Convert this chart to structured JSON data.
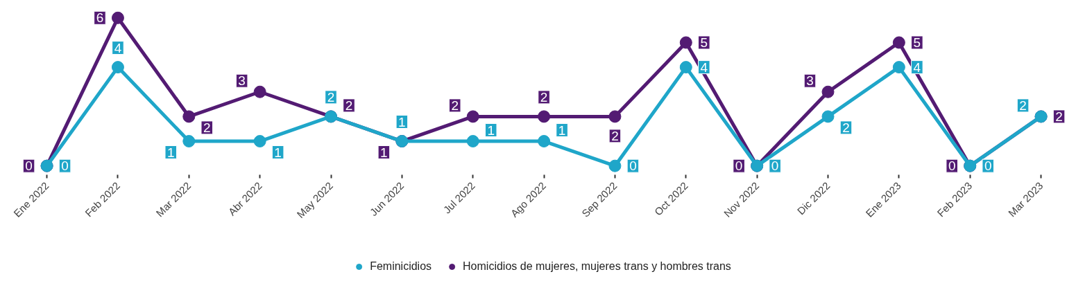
{
  "chart_data": {
    "type": "line",
    "categories": [
      "Ene 2022",
      "Feb 2022",
      "Mar 2022",
      "Abr 2022",
      "May 2022",
      "Jun 2022",
      "Jul 2022",
      "Ago 2022",
      "Sep 2022",
      "Oct 2022",
      "Nov 2022",
      "Dic 2022",
      "Ene 2023",
      "Feb 2023",
      "Mar 2023"
    ],
    "series": [
      {
        "name": "Feminicidios",
        "color": "#1fa6c9",
        "values": [
          0,
          4,
          1,
          1,
          2,
          1,
          1,
          1,
          0,
          4,
          0,
          2,
          4,
          0,
          2
        ]
      },
      {
        "name": "Homicidios de mujeres, mujeres trans y hombres trans",
        "color": "#531b73",
        "values": [
          0,
          6,
          2,
          3,
          2,
          1,
          2,
          2,
          2,
          5,
          0,
          3,
          5,
          0,
          2
        ]
      }
    ],
    "data_labels": true,
    "marker": "circle",
    "line_style": "solid",
    "legend": "bottom",
    "grid": false,
    "tick_labels": "x"
  }
}
